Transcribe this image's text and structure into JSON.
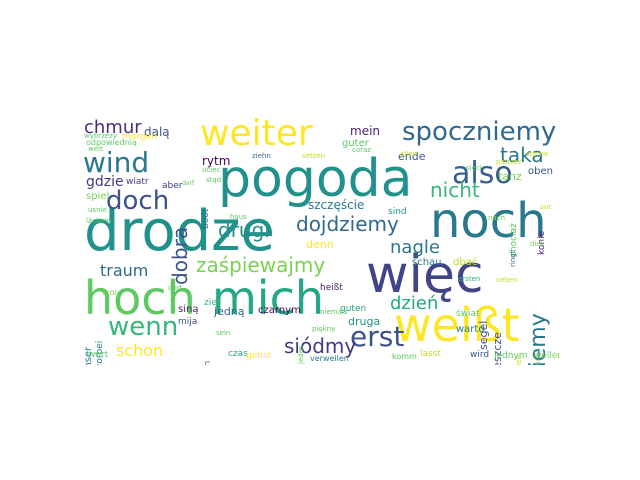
{
  "word_cloud": {
    "words": [
      {
        "text": "pogoda",
        "color": "#21918c"
      },
      {
        "text": "drodze",
        "color": "#21918c"
      },
      {
        "text": "noch",
        "color": "#2a788e"
      },
      {
        "text": "więc",
        "color": "#414487"
      },
      {
        "text": "hoch",
        "color": "#5ec962"
      },
      {
        "text": "mich",
        "color": "#22a884"
      },
      {
        "text": "weißt",
        "color": "#fde725"
      },
      {
        "text": "weiter",
        "color": "#fde725"
      },
      {
        "text": "spoczniemy",
        "color": "#31688e"
      },
      {
        "text": "wind",
        "color": "#2a788e"
      },
      {
        "text": "also",
        "color": "#355f8d"
      },
      {
        "text": "doch",
        "color": "#3b528b"
      },
      {
        "text": "erst",
        "color": "#3b528b"
      },
      {
        "text": "wenn",
        "color": "#35b779"
      },
      {
        "text": "zajdziemy",
        "color": "#2a788e"
      },
      {
        "text": "dojdziemy",
        "color": "#31688e"
      },
      {
        "text": "zaśpiewajmy",
        "color": "#7ad151"
      },
      {
        "text": "siódmy",
        "color": "#443983"
      },
      {
        "text": "drugi",
        "color": "#21918c"
      },
      {
        "text": "nicht",
        "color": "#35b779"
      },
      {
        "text": "taka",
        "color": "#2a788e"
      },
      {
        "text": "dobra",
        "color": "#3b528b"
      },
      {
        "text": "chmur",
        "color": "#472d7b"
      },
      {
        "text": "nagle",
        "color": "#2a788e"
      },
      {
        "text": "dzień",
        "color": "#22a884"
      },
      {
        "text": "traum",
        "color": "#31688e"
      },
      {
        "text": "schon",
        "color": "#fde725"
      },
      {
        "text": "gdzie",
        "color": "#443983"
      },
      {
        "text": "mein",
        "color": "#481f70"
      },
      {
        "text": "guter",
        "color": "#5ec962"
      },
      {
        "text": "rytm",
        "color": "#440154"
      },
      {
        "text": "dalą",
        "color": "#3b528b"
      },
      {
        "text": "ende",
        "color": "#3b528b"
      },
      {
        "text": "tanz",
        "color": "#7ad151"
      },
      {
        "text": "szczęście",
        "color": "#2a788e"
      },
      {
        "text": "denn",
        "color": "#fde725"
      },
      {
        "text": "druga",
        "color": "#21918c"
      },
      {
        "text": "segel",
        "color": "#3b528b"
      },
      {
        "text": "jeszcze",
        "color": "#3b528b"
      },
      {
        "text": "oben",
        "color": "#3b528b"
      },
      {
        "text": "wiatr",
        "color": "#443983"
      },
      {
        "text": "aber",
        "color": "#443983"
      },
      {
        "text": "spiel",
        "color": "#7ad151"
      },
      {
        "text": "boot",
        "color": "#31688e"
      },
      {
        "text": "sind",
        "color": "#21918c"
      },
      {
        "text": "schau",
        "color": "#2a788e"
      },
      {
        "text": "dbać",
        "color": "#bddf26"
      },
      {
        "text": "konie",
        "color": "#481f70"
      },
      {
        "text": "heißt",
        "color": "#481f70"
      },
      {
        "text": "jedną",
        "color": "#31688e"
      },
      {
        "text": "czarnym",
        "color": "#440154"
      },
      {
        "text": "siną",
        "color": "#481f70"
      },
      {
        "text": "guten",
        "color": "#22a884"
      },
      {
        "text": "warto",
        "color": "#2a788e"
      },
      {
        "text": "świat",
        "color": "#5ec962"
      },
      {
        "text": "chociaż",
        "color": "#5ec962"
      },
      {
        "text": "ziel",
        "color": "#35b779"
      },
      {
        "text": "mija",
        "color": "#3b528b"
      },
      {
        "text": "kroi",
        "color": "#7ad151"
      },
      {
        "text": "unser",
        "color": "#2a788e"
      },
      {
        "text": "vorbei",
        "color": "#2a788e"
      },
      {
        "text": "odpowiednią",
        "color": "#5ec962"
      },
      {
        "text": "morgen",
        "color": "#fde725"
      },
      {
        "text": "wort",
        "color": "#5ec962"
      },
      {
        "text": "czas",
        "color": "#22a884"
      },
      {
        "text": "gehst",
        "color": "#fde725"
      },
      {
        "text": "verweilen",
        "color": "#2a788e"
      },
      {
        "text": "lasst",
        "color": "#bddf26"
      },
      {
        "text": "komm",
        "color": "#5ec962"
      },
      {
        "text": "wird",
        "color": "#3b528b"
      },
      {
        "text": "jednym",
        "color": "#5ec962"
      },
      {
        "text": "wellen",
        "color": "#7ad151"
      },
      {
        "text": "spielen",
        "color": "#31688e"
      },
      {
        "text": "sein",
        "color": "#5ec962"
      },
      {
        "text": "jedes",
        "color": "#5ec962"
      },
      {
        "text": "piękny",
        "color": "#5ec962"
      },
      {
        "text": "niemals",
        "color": "#5ec962"
      },
      {
        "text": "ersten",
        "color": "#35b779"
      },
      {
        "text": "nach",
        "color": "#7ad151"
      },
      {
        "text": "dich",
        "color": "#7ad151"
      },
      {
        "text": "allein",
        "color": "#bddf26"
      },
      {
        "text": "coraz",
        "color": "#5ec962"
      },
      {
        "text": "setzen",
        "color": "#bddf26"
      },
      {
        "text": "ziehn",
        "color": "#31688e"
      },
      {
        "text": "haus",
        "color": "#5ec962"
      },
      {
        "text": "uciec",
        "color": "#5ec962"
      },
      {
        "text": "stąd",
        "color": "#5ec962"
      },
      {
        "text": "usnie",
        "color": "#5ec962"
      },
      {
        "text": "lächeln",
        "color": "#5ec962"
      },
      {
        "text": "weit",
        "color": "#5ec962"
      },
      {
        "text": "wybrzeży",
        "color": "#5ec962"
      },
      {
        "text": "patrzeć",
        "color": "#bddf26"
      },
      {
        "text": "neben",
        "color": "#bddf26"
      },
      {
        "text": "eilen",
        "color": "#bddf26"
      },
      {
        "text": "sterne",
        "color": "#bddf26"
      },
      {
        "text": "niewidzialny",
        "color": "#5ec962"
      },
      {
        "text": "sieci",
        "color": "#5ec962"
      },
      {
        "text": "darf",
        "color": "#5ec962"
      },
      {
        "text": "ringt",
        "color": "#31688e"
      },
      {
        "text": "dort",
        "color": "#5ec962"
      },
      {
        "text": "zeit",
        "color": "#bddf26"
      }
    ]
  }
}
